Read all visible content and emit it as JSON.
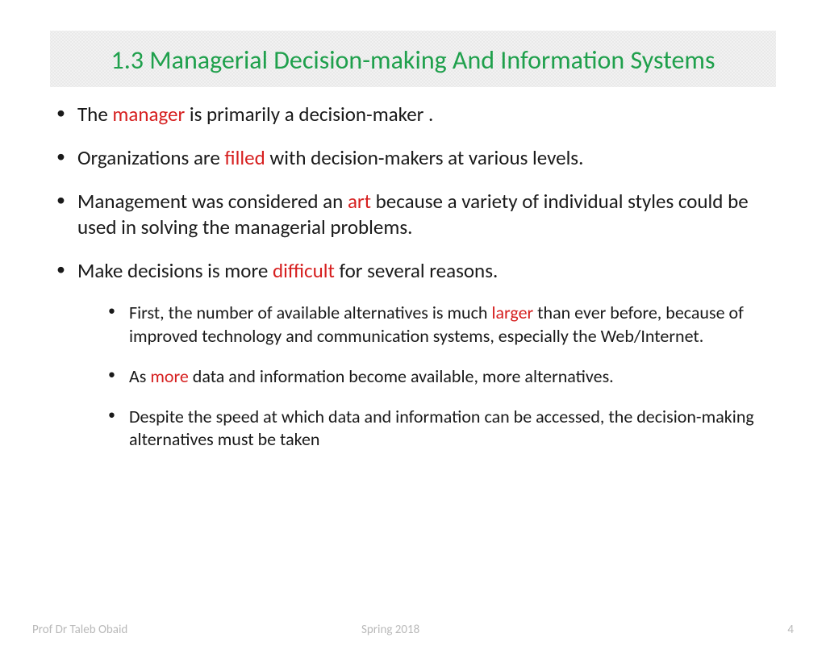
{
  "title": "1.3 Managerial Decision-making And Information Systems",
  "bullets": {
    "b1": {
      "pre": "The ",
      "hl": "manager",
      "post": " is primarily a decision-maker ."
    },
    "b2": {
      "pre": "Organizations are ",
      "hl": "filled",
      "post": " with decision-makers at various levels."
    },
    "b3": {
      "pre": "Management was considered an ",
      "hl": "art",
      "post": " because a variety of individual styles could be used in solving the managerial problems."
    },
    "b4": {
      "pre": "Make decisions is more ",
      "hl": "difficult",
      "post": " for several reasons."
    }
  },
  "subbullets": {
    "s1": {
      "pre": "First, the number of available alternatives is much ",
      "hl": "larger",
      "post": " than ever before,  because of improved technology and communication systems, especially the Web/Internet."
    },
    "s2": {
      "pre": "As ",
      "hl": "more",
      "post": " data and information become available, more alternatives."
    },
    "s3": {
      "pre": " Despite the speed at which data and information can be accessed, the decision-making alternatives must be taken",
      "hl": "",
      "post": ""
    }
  },
  "footer": {
    "author": "Prof Dr Taleb Obaid",
    "term": "Spring 2018",
    "page": "4"
  },
  "colors": {
    "title": "#1fa04c",
    "highlight": "#d61f1f",
    "body": "#1a1a1a",
    "footer": "#b9b9b9",
    "band_bg": "#f2f2f2"
  },
  "fontsizes": {
    "title": 32,
    "level1": 25,
    "level2": 22,
    "footer": 15
  }
}
